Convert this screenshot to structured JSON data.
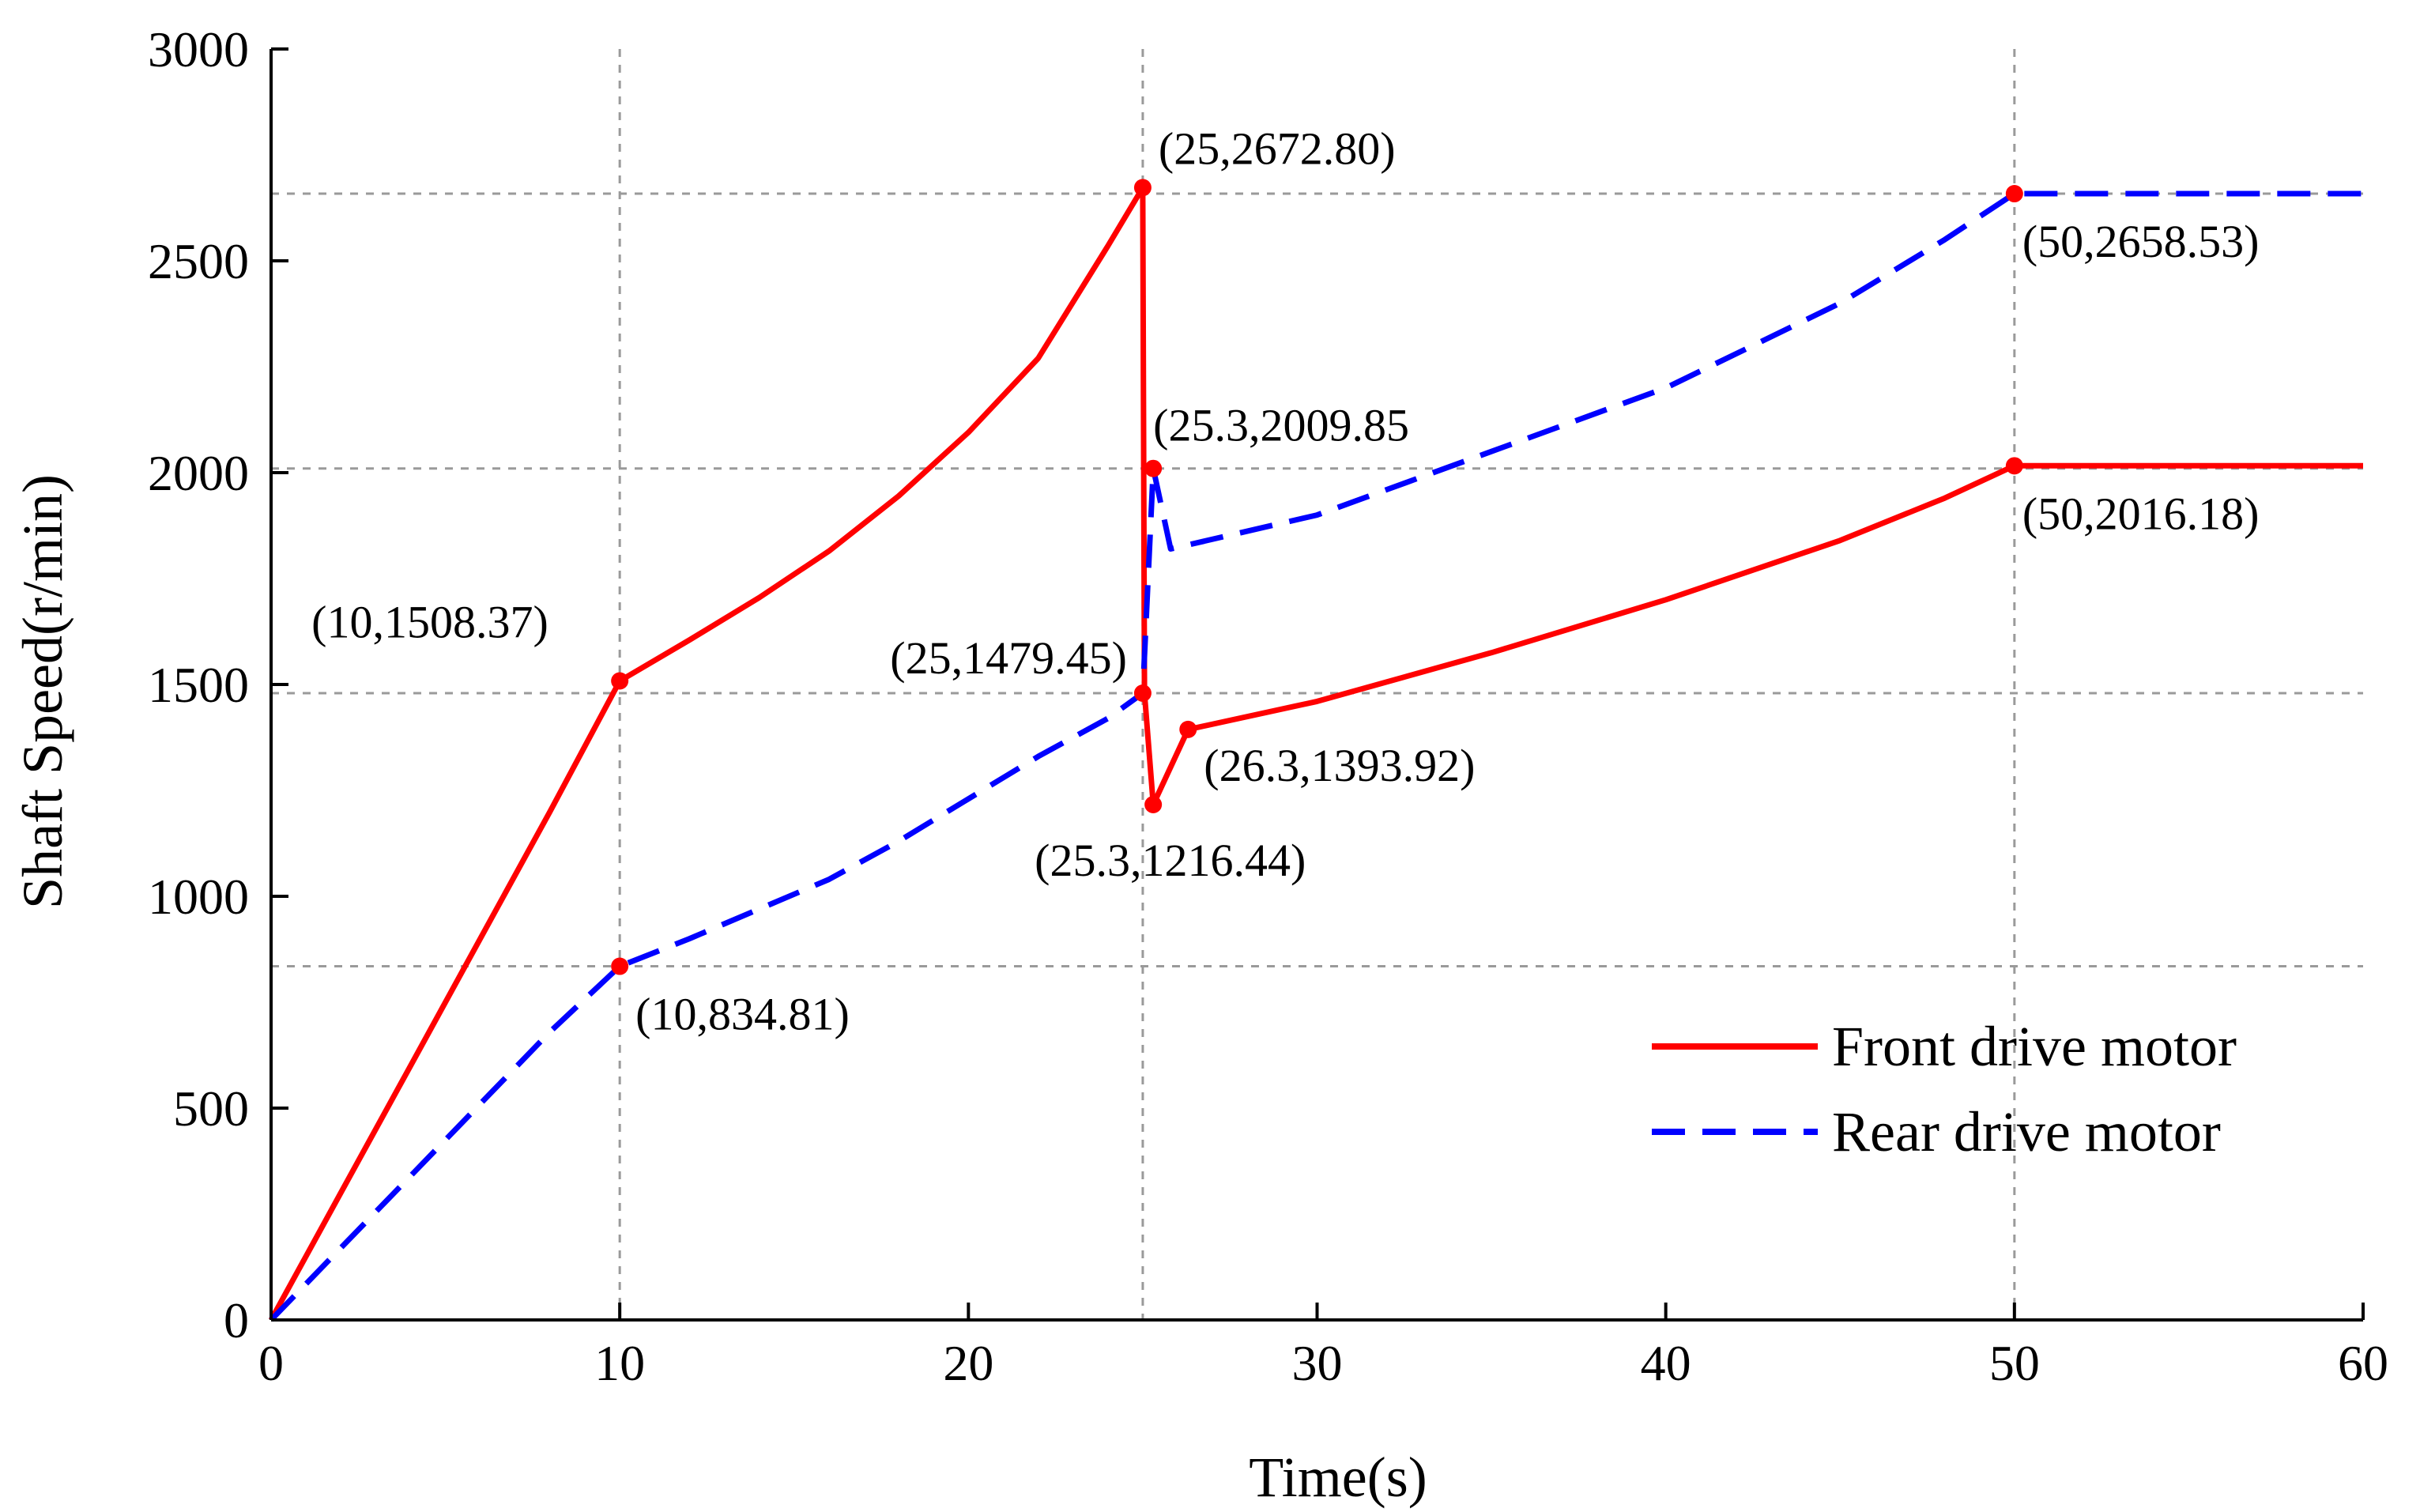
{
  "chart_data": {
    "type": "line",
    "title": "",
    "xlabel": "Time(s)",
    "ylabel": "Shaft Speed(r/min)",
    "xlim": [
      0,
      60
    ],
    "ylim": [
      0,
      3000
    ],
    "xticks": [
      0,
      10,
      20,
      30,
      40,
      50,
      60
    ],
    "yticks": [
      0,
      500,
      1000,
      1500,
      2000,
      2500,
      3000
    ],
    "grid": "dashed reference lines at annotated points",
    "ref_lines_x": [
      10,
      25,
      50
    ],
    "ref_lines_y": [
      834.81,
      1479.45,
      2009.85,
      2658.53
    ],
    "legend_position": "bottom-right",
    "series": [
      {
        "name": "Front drive motor",
        "color": "#ff0000",
        "style": "solid",
        "points": [
          [
            0,
            0
          ],
          [
            2,
            300
          ],
          [
            4,
            600
          ],
          [
            6,
            900
          ],
          [
            8,
            1200
          ],
          [
            10,
            1508.37
          ],
          [
            12,
            1605
          ],
          [
            14,
            1705
          ],
          [
            16,
            1815
          ],
          [
            18,
            1945
          ],
          [
            20,
            2095
          ],
          [
            22,
            2270
          ],
          [
            24,
            2535
          ],
          [
            25,
            2672.8
          ],
          [
            25.05,
            1479.45
          ],
          [
            25.3,
            1216.44
          ],
          [
            26.3,
            1393.92
          ],
          [
            30,
            1460
          ],
          [
            35,
            1575
          ],
          [
            40,
            1700
          ],
          [
            45,
            1840
          ],
          [
            48,
            1940
          ],
          [
            50,
            2016.18
          ],
          [
            60,
            2016.18
          ]
        ]
      },
      {
        "name": "Rear drive motor",
        "color": "#0000ff",
        "style": "dashed",
        "points": [
          [
            0,
            0
          ],
          [
            2,
            170
          ],
          [
            4,
            340
          ],
          [
            6,
            510
          ],
          [
            8,
            680
          ],
          [
            10,
            834.81
          ],
          [
            12,
            900
          ],
          [
            14,
            970
          ],
          [
            16,
            1040
          ],
          [
            18,
            1130
          ],
          [
            20,
            1230
          ],
          [
            22,
            1330
          ],
          [
            24,
            1420
          ],
          [
            25,
            1479.45
          ],
          [
            25.3,
            2009.85
          ],
          [
            25.8,
            1820
          ],
          [
            30,
            1900
          ],
          [
            35,
            2050
          ],
          [
            40,
            2200
          ],
          [
            45,
            2400
          ],
          [
            48,
            2550
          ],
          [
            50,
            2658.53
          ],
          [
            60,
            2658.53
          ]
        ]
      }
    ],
    "markers": [
      {
        "x": 10,
        "y": 1508.37,
        "label": "(10,1508.37)"
      },
      {
        "x": 10,
        "y": 834.81,
        "label": "(10,834.81)"
      },
      {
        "x": 25,
        "y": 2672.8,
        "label": "(25,2672.80)"
      },
      {
        "x": 25,
        "y": 1479.45,
        "label": "(25,1479.45)"
      },
      {
        "x": 25.3,
        "y": 2009.85,
        "label": "(25.3,2009.85"
      },
      {
        "x": 25.3,
        "y": 1216.44,
        "label": "(25.3,1216.44)"
      },
      {
        "x": 26.3,
        "y": 1393.92,
        "label": "(26.3,1393.92)"
      },
      {
        "x": 50,
        "y": 2658.53,
        "label": "(50,2658.53)"
      },
      {
        "x": 50,
        "y": 2016.18,
        "label": "(50,2016.18)"
      }
    ]
  }
}
